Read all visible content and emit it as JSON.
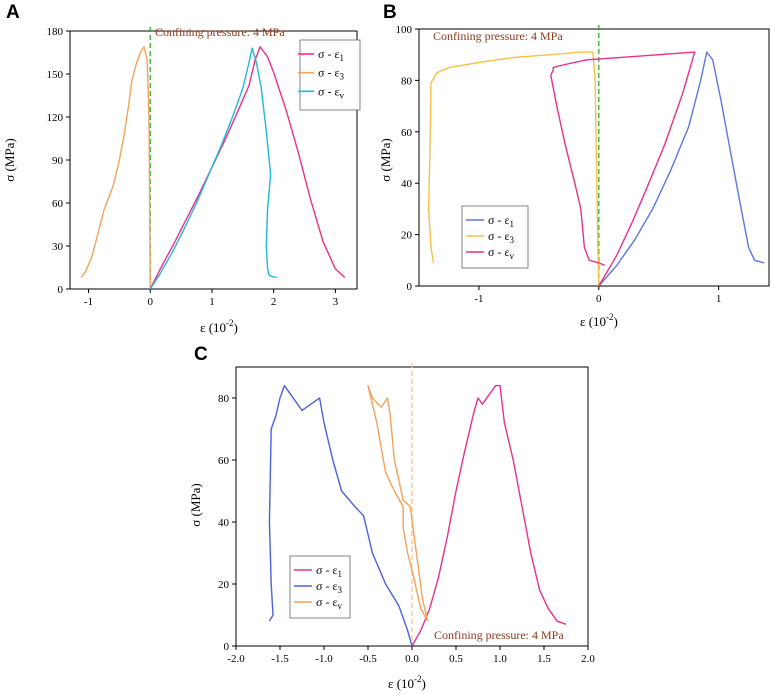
{
  "chart_data": [
    {
      "panel": "A",
      "type": "line",
      "annotation": "Confining pressure: 4 MPa",
      "annotation_color": "#8b3a1a",
      "xlabel_main": "ε (10",
      "xlabel_sup": "-2",
      "xlabel_end": ")",
      "ylabel": "σ (MPa)",
      "xlim": [
        -1.3,
        3.35
      ],
      "ylim": [
        0,
        180
      ],
      "xticks": [
        -1,
        0,
        1,
        2,
        3
      ],
      "xtick_labels": [
        "-1",
        "0",
        "1",
        "2",
        "3"
      ],
      "yticks": [
        0,
        30,
        60,
        90,
        120,
        150,
        180
      ],
      "ytick_labels": [
        "0",
        "30",
        "60",
        "90",
        "120",
        "150",
        "180"
      ],
      "refline": {
        "x": 0,
        "color": "#3aa832"
      },
      "series": [
        {
          "name": "σ - ε",
          "sub": "1",
          "color": "#e8308c",
          "x": [
            0,
            0.2,
            0.4,
            0.6,
            0.8,
            1.0,
            1.2,
            1.4,
            1.6,
            1.7,
            1.78,
            1.9,
            2.0,
            2.2,
            2.4,
            2.6,
            2.8,
            3.0,
            3.15
          ],
          "y": [
            0,
            17,
            33,
            50,
            67,
            85,
            103,
            122,
            142,
            160,
            169,
            162,
            151,
            125,
            95,
            62,
            33,
            14,
            8
          ]
        },
        {
          "name": "σ - ε",
          "sub": "3",
          "color": "#f4a25a",
          "x": [
            -1.12,
            -1.05,
            -0.95,
            -0.85,
            -0.75,
            -0.6,
            -0.5,
            -0.42,
            -0.35,
            -0.3,
            -0.22,
            -0.15,
            -0.1,
            -0.05,
            -0.02,
            0
          ],
          "y": [
            8,
            12,
            22,
            38,
            55,
            72,
            90,
            108,
            128,
            145,
            158,
            166,
            169,
            160,
            120,
            0
          ]
        },
        {
          "name": "σ - ε",
          "sub": "v",
          "color": "#1fb9d6",
          "x": [
            0,
            0.15,
            0.35,
            0.55,
            0.75,
            0.95,
            1.15,
            1.35,
            1.5,
            1.6,
            1.65,
            1.72,
            1.8,
            1.88,
            1.95,
            1.9,
            1.88,
            1.9,
            1.92,
            1.95,
            2.05
          ],
          "y": [
            0,
            10,
            25,
            42,
            60,
            80,
            100,
            122,
            140,
            158,
            168,
            158,
            140,
            110,
            80,
            55,
            30,
            15,
            10,
            9,
            8
          ]
        }
      ]
    },
    {
      "panel": "B",
      "type": "line",
      "annotation": "Confining pressure: 4 MPa",
      "annotation_color": "#8b3a1a",
      "xlabel_main": "ε (10",
      "xlabel_sup": "-2",
      "xlabel_end": ")",
      "ylabel": "σ (MPa)",
      "xlim": [
        -1.5,
        1.42
      ],
      "ylim": [
        0,
        100
      ],
      "xticks": [
        -1,
        0,
        1
      ],
      "xtick_labels": [
        "-1",
        "0",
        "1"
      ],
      "yticks": [
        0,
        20,
        40,
        60,
        80,
        100
      ],
      "ytick_labels": [
        "0",
        "20",
        "40",
        "60",
        "80",
        "100"
      ],
      "refline": {
        "x": 0,
        "color": "#3aa832"
      },
      "series": [
        {
          "name": "σ - ε",
          "sub": "1",
          "color": "#5a78e0",
          "x": [
            0,
            0.15,
            0.3,
            0.45,
            0.6,
            0.75,
            0.85,
            0.9,
            0.95,
            1.02,
            1.1,
            1.18,
            1.25,
            1.3,
            1.38
          ],
          "y": [
            0,
            8,
            18,
            30,
            45,
            62,
            80,
            91,
            88,
            72,
            52,
            32,
            15,
            10,
            9
          ]
        },
        {
          "name": "σ - ε",
          "sub": "3",
          "color": "#f8c04a",
          "x": [
            -1.38,
            -1.4,
            -1.42,
            -1.41,
            -1.4,
            -1.35,
            -1.25,
            -1.0,
            -0.7,
            -0.4,
            -0.15,
            -0.05,
            -0.03,
            -0.02,
            -0.01,
            0
          ],
          "y": [
            9,
            15,
            30,
            50,
            79,
            83,
            85,
            87,
            89,
            90,
            91,
            91,
            80,
            50,
            20,
            0
          ]
        },
        {
          "name": "σ - ε",
          "sub": "v",
          "color": "#e8308c",
          "x": [
            0.05,
            0,
            -0.08,
            -0.12,
            -0.15,
            -0.2,
            -0.28,
            -0.35,
            -0.4,
            -0.38,
            -0.38,
            -0.3,
            -0.1,
            0.2,
            0.5,
            0.8,
            0.7,
            0.55,
            0.4,
            0.28,
            0.15,
            0.05,
            0
          ],
          "y": [
            8,
            9,
            10,
            15,
            30,
            40,
            55,
            70,
            82,
            84,
            85,
            86,
            88,
            89,
            90,
            91,
            75,
            55,
            38,
            25,
            12,
            4,
            0
          ]
        }
      ]
    },
    {
      "panel": "C",
      "type": "line",
      "annotation": "Confining pressure: 4 MPa",
      "annotation_color": "#8b3a1a",
      "xlabel_main": "ε (10",
      "xlabel_sup": "-2",
      "xlabel_end": ")",
      "ylabel": "σ (MPa)",
      "xlim": [
        -2.0,
        2.0
      ],
      "ylim": [
        0,
        90
      ],
      "xticks": [
        -2.0,
        -1.5,
        -1.0,
        -0.5,
        0.0,
        0.5,
        1.0,
        1.5,
        2.0
      ],
      "xtick_labels": [
        "-2.0",
        "-1.5",
        "-1.0",
        "-0.5",
        "0.0",
        "0.5",
        "1.0",
        "1.5",
        "2.0"
      ],
      "yticks": [
        0,
        20,
        40,
        60,
        80
      ],
      "ytick_labels": [
        "0",
        "20",
        "40",
        "60",
        "80"
      ],
      "refline": {
        "x": 0,
        "color": "#f8c488"
      },
      "series": [
        {
          "name": "σ - ε",
          "sub": "1",
          "color": "#e8308c",
          "x": [
            0,
            0.1,
            0.2,
            0.3,
            0.4,
            0.5,
            0.6,
            0.7,
            0.75,
            0.8,
            0.9,
            0.95,
            1.0,
            1.05,
            1.15,
            1.25,
            1.35,
            1.45,
            1.55,
            1.65,
            1.75
          ],
          "y": [
            0,
            5,
            12,
            22,
            35,
            50,
            63,
            75,
            80,
            78,
            82,
            84,
            84,
            72,
            60,
            45,
            30,
            18,
            12,
            8,
            7
          ]
        },
        {
          "name": "σ - ε",
          "sub": "3",
          "color": "#4a62e0",
          "x": [
            0,
            -0.05,
            -0.15,
            -0.3,
            -0.45,
            -0.55,
            -0.65,
            -0.8,
            -0.9,
            -1.0,
            -1.05,
            -1.1,
            -1.25,
            -1.4,
            -1.45,
            -1.5,
            -1.55,
            -1.6,
            -1.62,
            -1.6,
            -1.58,
            -1.62
          ],
          "y": [
            0,
            5,
            13,
            20,
            30,
            42,
            45,
            50,
            60,
            72,
            80,
            79,
            76,
            82,
            84,
            80,
            74,
            70,
            40,
            20,
            10,
            8
          ]
        },
        {
          "name": "σ - ε",
          "sub": "v",
          "color": "#f4a25a",
          "x": [
            0.18,
            0.1,
            0.02,
            -0.05,
            -0.1,
            -0.1,
            -0.2,
            -0.3,
            -0.35,
            -0.4,
            -0.45,
            -0.5,
            -0.45,
            -0.35,
            -0.28,
            -0.25,
            -0.2,
            -0.1,
            -0.02,
            0.05,
            0.12,
            0.18
          ],
          "y": [
            8,
            12,
            22,
            30,
            38,
            45,
            50,
            56,
            64,
            72,
            78,
            84,
            80,
            77,
            80,
            75,
            60,
            47,
            45,
            30,
            15,
            8
          ]
        }
      ]
    }
  ]
}
